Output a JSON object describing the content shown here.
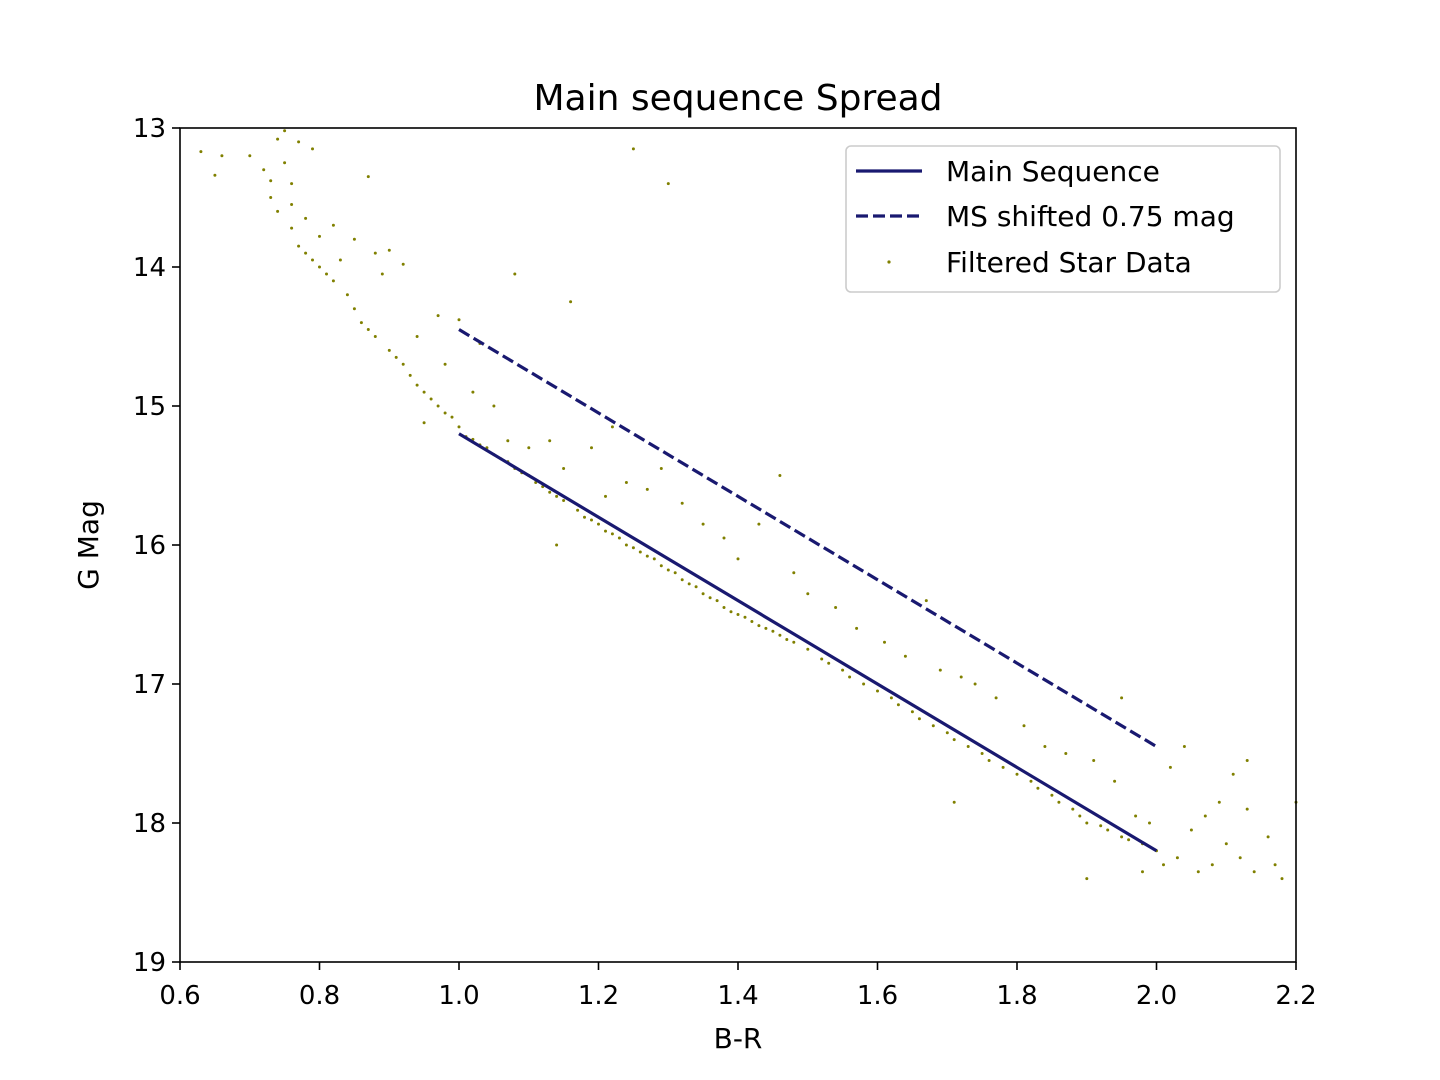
{
  "chart_data": {
    "type": "scatter",
    "title": "Main sequence Spread",
    "xlabel": "B-R",
    "ylabel": "G Mag",
    "xlim": [
      0.6,
      2.2
    ],
    "ylim": [
      19,
      13
    ],
    "y_inverted": true,
    "x_ticks": [
      "0.6",
      "0.8",
      "1.0",
      "1.2",
      "1.4",
      "1.6",
      "1.8",
      "2.0",
      "2.2"
    ],
    "y_ticks": [
      "13",
      "14",
      "15",
      "16",
      "17",
      "18",
      "19"
    ],
    "grid": false,
    "legend_position": "top-right",
    "series": [
      {
        "name": "Main Sequence",
        "kind": "line",
        "style": "solid",
        "color": "#191970",
        "x": [
          1.0,
          2.0
        ],
        "y": [
          15.2,
          18.2
        ]
      },
      {
        "name": "MS shifted 0.75 mag",
        "kind": "line",
        "style": "dashed",
        "color": "#191970",
        "x": [
          1.0,
          2.0
        ],
        "y": [
          14.45,
          17.45
        ]
      },
      {
        "name": "Filtered Star Data",
        "kind": "scatter",
        "color": "#808000",
        "points": [
          [
            0.63,
            13.17
          ],
          [
            0.66,
            13.2
          ],
          [
            0.65,
            13.34
          ],
          [
            0.7,
            13.2
          ],
          [
            0.72,
            13.3
          ],
          [
            0.73,
            13.38
          ],
          [
            0.73,
            13.5
          ],
          [
            0.74,
            13.6
          ],
          [
            0.74,
            13.08
          ],
          [
            0.75,
            13.02
          ],
          [
            0.75,
            13.25
          ],
          [
            0.76,
            13.4
          ],
          [
            0.76,
            13.55
          ],
          [
            0.76,
            13.72
          ],
          [
            0.77,
            13.1
          ],
          [
            0.77,
            13.85
          ],
          [
            0.78,
            13.9
          ],
          [
            0.78,
            13.65
          ],
          [
            0.79,
            13.15
          ],
          [
            0.79,
            13.95
          ],
          [
            0.8,
            14.0
          ],
          [
            0.8,
            13.78
          ],
          [
            0.81,
            14.05
          ],
          [
            0.82,
            14.1
          ],
          [
            0.82,
            13.7
          ],
          [
            0.83,
            13.95
          ],
          [
            0.84,
            14.2
          ],
          [
            0.85,
            14.3
          ],
          [
            0.85,
            13.8
          ],
          [
            0.86,
            14.4
          ],
          [
            0.87,
            13.35
          ],
          [
            0.87,
            14.45
          ],
          [
            0.88,
            14.5
          ],
          [
            0.88,
            13.9
          ],
          [
            0.89,
            14.05
          ],
          [
            0.9,
            14.6
          ],
          [
            0.9,
            13.88
          ],
          [
            0.91,
            14.65
          ],
          [
            0.92,
            14.7
          ],
          [
            0.92,
            13.98
          ],
          [
            0.93,
            14.78
          ],
          [
            0.94,
            14.85
          ],
          [
            0.94,
            14.5
          ],
          [
            0.95,
            14.9
          ],
          [
            0.95,
            15.12
          ],
          [
            0.96,
            14.95
          ],
          [
            0.97,
            15.0
          ],
          [
            0.97,
            14.35
          ],
          [
            0.98,
            15.05
          ],
          [
            0.98,
            14.7
          ],
          [
            0.99,
            15.08
          ],
          [
            1.0,
            15.15
          ],
          [
            1.0,
            14.38
          ],
          [
            1.01,
            15.22
          ],
          [
            1.02,
            14.9
          ],
          [
            1.02,
            15.24
          ],
          [
            1.03,
            15.28
          ],
          [
            1.03,
            14.55
          ],
          [
            1.04,
            15.3
          ],
          [
            1.05,
            15.35
          ],
          [
            1.05,
            15.0
          ],
          [
            1.06,
            15.38
          ],
          [
            1.07,
            15.4
          ],
          [
            1.07,
            15.25
          ],
          [
            1.08,
            15.45
          ],
          [
            1.08,
            14.05
          ],
          [
            1.09,
            15.48
          ],
          [
            1.1,
            15.5
          ],
          [
            1.1,
            15.3
          ],
          [
            1.11,
            15.55
          ],
          [
            1.12,
            15.58
          ],
          [
            1.13,
            15.62
          ],
          [
            1.13,
            15.25
          ],
          [
            1.14,
            15.65
          ],
          [
            1.14,
            16.0
          ],
          [
            1.15,
            15.68
          ],
          [
            1.15,
            15.45
          ],
          [
            1.16,
            14.25
          ],
          [
            1.17,
            15.75
          ],
          [
            1.18,
            15.8
          ],
          [
            1.19,
            15.82
          ],
          [
            1.19,
            15.3
          ],
          [
            1.2,
            15.85
          ],
          [
            1.21,
            15.9
          ],
          [
            1.21,
            15.65
          ],
          [
            1.22,
            15.92
          ],
          [
            1.22,
            15.15
          ],
          [
            1.23,
            15.95
          ],
          [
            1.24,
            16.0
          ],
          [
            1.24,
            15.55
          ],
          [
            1.25,
            16.02
          ],
          [
            1.25,
            13.15
          ],
          [
            1.26,
            16.05
          ],
          [
            1.27,
            16.08
          ],
          [
            1.27,
            15.6
          ],
          [
            1.28,
            16.1
          ],
          [
            1.29,
            16.15
          ],
          [
            1.29,
            15.45
          ],
          [
            1.3,
            16.18
          ],
          [
            1.3,
            13.4
          ],
          [
            1.31,
            16.2
          ],
          [
            1.32,
            16.25
          ],
          [
            1.32,
            15.7
          ],
          [
            1.33,
            16.28
          ],
          [
            1.34,
            16.3
          ],
          [
            1.35,
            16.35
          ],
          [
            1.35,
            15.85
          ],
          [
            1.36,
            16.38
          ],
          [
            1.37,
            16.4
          ],
          [
            1.38,
            16.45
          ],
          [
            1.38,
            15.95
          ],
          [
            1.39,
            16.48
          ],
          [
            1.4,
            16.5
          ],
          [
            1.4,
            16.1
          ],
          [
            1.41,
            16.52
          ],
          [
            1.42,
            16.55
          ],
          [
            1.43,
            16.58
          ],
          [
            1.43,
            15.85
          ],
          [
            1.44,
            16.6
          ],
          [
            1.45,
            16.62
          ],
          [
            1.46,
            16.65
          ],
          [
            1.46,
            15.5
          ],
          [
            1.47,
            16.68
          ],
          [
            1.48,
            16.7
          ],
          [
            1.48,
            16.2
          ],
          [
            1.5,
            16.75
          ],
          [
            1.5,
            16.35
          ],
          [
            1.52,
            16.82
          ],
          [
            1.53,
            16.85
          ],
          [
            1.54,
            16.45
          ],
          [
            1.55,
            16.9
          ],
          [
            1.56,
            16.95
          ],
          [
            1.57,
            16.6
          ],
          [
            1.58,
            17.0
          ],
          [
            1.6,
            17.05
          ],
          [
            1.61,
            16.7
          ],
          [
            1.62,
            17.1
          ],
          [
            1.63,
            17.15
          ],
          [
            1.64,
            16.8
          ],
          [
            1.65,
            17.2
          ],
          [
            1.66,
            17.25
          ],
          [
            1.67,
            16.4
          ],
          [
            1.68,
            17.3
          ],
          [
            1.69,
            16.9
          ],
          [
            1.7,
            17.35
          ],
          [
            1.71,
            17.4
          ],
          [
            1.71,
            17.85
          ],
          [
            1.72,
            16.95
          ],
          [
            1.73,
            17.45
          ],
          [
            1.74,
            17.0
          ],
          [
            1.75,
            17.5
          ],
          [
            1.76,
            17.55
          ],
          [
            1.77,
            17.1
          ],
          [
            1.78,
            17.6
          ],
          [
            1.8,
            17.65
          ],
          [
            1.81,
            17.3
          ],
          [
            1.82,
            17.7
          ],
          [
            1.83,
            17.75
          ],
          [
            1.84,
            17.45
          ],
          [
            1.85,
            17.8
          ],
          [
            1.86,
            17.85
          ],
          [
            1.87,
            17.5
          ],
          [
            1.88,
            17.9
          ],
          [
            1.89,
            17.95
          ],
          [
            1.9,
            18.0
          ],
          [
            1.9,
            18.4
          ],
          [
            1.91,
            17.55
          ],
          [
            1.92,
            18.02
          ],
          [
            1.93,
            18.05
          ],
          [
            1.94,
            17.7
          ],
          [
            1.95,
            18.1
          ],
          [
            1.95,
            17.1
          ],
          [
            1.96,
            18.12
          ],
          [
            1.97,
            17.95
          ],
          [
            1.98,
            18.15
          ],
          [
            1.98,
            18.35
          ],
          [
            1.99,
            18.0
          ],
          [
            2.0,
            18.2
          ],
          [
            2.01,
            18.3
          ],
          [
            2.02,
            17.6
          ],
          [
            2.03,
            18.25
          ],
          [
            2.04,
            17.45
          ],
          [
            2.05,
            18.05
          ],
          [
            2.06,
            18.35
          ],
          [
            2.07,
            17.95
          ],
          [
            2.08,
            18.3
          ],
          [
            2.09,
            17.85
          ],
          [
            2.1,
            18.15
          ],
          [
            2.11,
            17.65
          ],
          [
            2.12,
            18.25
          ],
          [
            2.13,
            17.55
          ],
          [
            2.13,
            17.9
          ],
          [
            2.14,
            18.35
          ],
          [
            2.16,
            18.1
          ],
          [
            2.17,
            18.3
          ],
          [
            2.18,
            18.4
          ],
          [
            2.2,
            17.85
          ]
        ]
      }
    ]
  }
}
